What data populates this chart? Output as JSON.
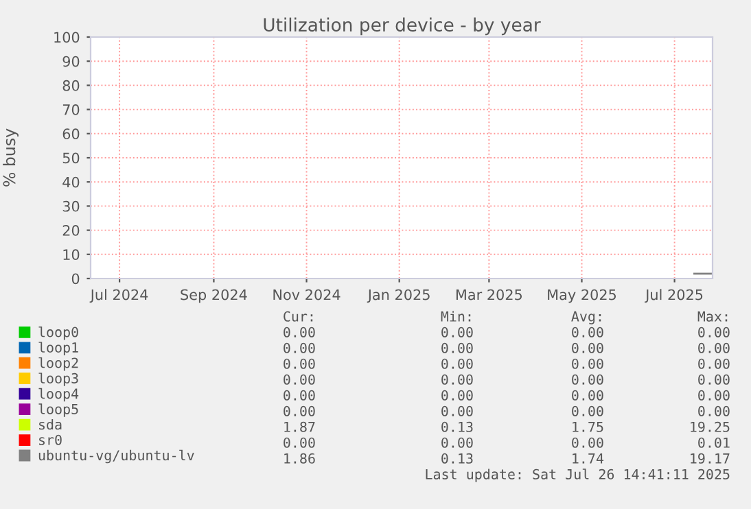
{
  "chart_data": {
    "type": "line",
    "title": "Utilization per device - by year",
    "ylabel": "% busy",
    "xlim": [
      "2024-06-12",
      "2025-07-26"
    ],
    "xticks": [
      {
        "value": "2024-07-01",
        "label": "Jul 2024"
      },
      {
        "value": "2024-09-01",
        "label": "Sep 2024"
      },
      {
        "value": "2024-11-01",
        "label": "Nov 2024"
      },
      {
        "value": "2025-01-01",
        "label": "Jan 2025"
      },
      {
        "value": "2025-03-01",
        "label": "Mar 2025"
      },
      {
        "value": "2025-05-01",
        "label": "May 2025"
      },
      {
        "value": "2025-07-01",
        "label": "Jul 2025"
      }
    ],
    "ylim": [
      0,
      100
    ],
    "yticks": [
      0,
      10,
      20,
      30,
      40,
      50,
      60,
      70,
      80,
      90,
      100
    ],
    "grid": true,
    "legend": "bottom",
    "x": [
      "2025-07-14",
      "2025-07-18",
      "2025-07-22",
      "2025-07-25"
    ],
    "series": [
      {
        "name": "loop0",
        "color": "#00cc00",
        "values": [
          null,
          null,
          null,
          null
        ]
      },
      {
        "name": "loop1",
        "color": "#0066b3",
        "values": [
          null,
          null,
          null,
          null
        ]
      },
      {
        "name": "loop2",
        "color": "#ff8000",
        "values": [
          null,
          null,
          null,
          null
        ]
      },
      {
        "name": "loop3",
        "color": "#ffcc00",
        "values": [
          null,
          null,
          null,
          null
        ]
      },
      {
        "name": "loop4",
        "color": "#330099",
        "values": [
          null,
          null,
          null,
          null
        ]
      },
      {
        "name": "loop5",
        "color": "#990099",
        "values": [
          null,
          null,
          null,
          null
        ]
      },
      {
        "name": "sda",
        "color": "#ccff00",
        "values": [
          null,
          null,
          null,
          null
        ]
      },
      {
        "name": "sr0",
        "color": "#ff0000",
        "values": [
          null,
          null,
          null,
          null
        ]
      },
      {
        "name": "ubuntu-vg/ubuntu-lv",
        "color": "#808080",
        "values": [
          2,
          2,
          2,
          2
        ]
      }
    ],
    "annotations": [
      "Cur:",
      "Min:",
      "Avg:",
      "Max:",
      "0.00",
      "0.00",
      "0.00",
      "0.00",
      "0.00",
      "0.00",
      "0.00",
      "0.00",
      "0.00",
      "0.00",
      "0.00",
      "0.00",
      "0.00",
      "0.00",
      "0.00",
      "0.00",
      "0.00",
      "0.00",
      "0.00",
      "0.00",
      "0.00",
      "0.00",
      "0.00",
      "0.00",
      "1.87",
      "0.13",
      "1.75",
      "19.25",
      "0.00",
      "0.00",
      "0.00",
      "0.01",
      "1.86",
      "0.13",
      "1.74",
      "19.17",
      "Last update: Sat Jul 26 14:41:11 2025"
    ]
  }
}
